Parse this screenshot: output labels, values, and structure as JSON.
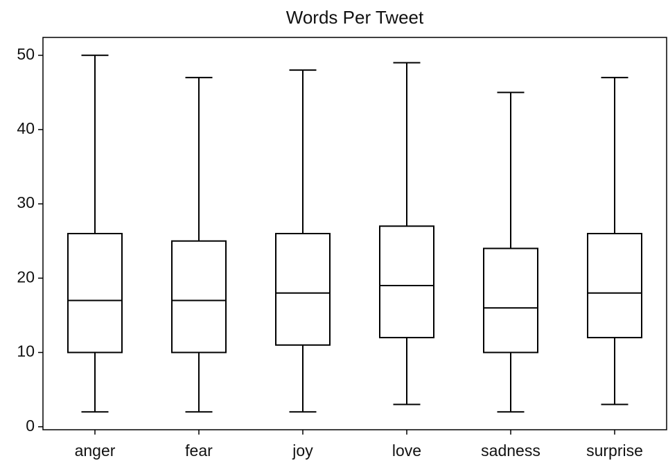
{
  "chart_data": {
    "type": "box",
    "title": "Words Per Tweet",
    "categories": [
      "anger",
      "fear",
      "joy",
      "love",
      "sadness",
      "surprise"
    ],
    "boxes": [
      {
        "whislo": 2,
        "q1": 10,
        "med": 17,
        "q3": 26,
        "whishi": 50
      },
      {
        "whislo": 2,
        "q1": 10,
        "med": 17,
        "q3": 25,
        "whishi": 47
      },
      {
        "whislo": 2,
        "q1": 11,
        "med": 18,
        "q3": 26,
        "whishi": 48
      },
      {
        "whislo": 3,
        "q1": 12,
        "med": 19,
        "q3": 27,
        "whishi": 49
      },
      {
        "whislo": 2,
        "q1": 10,
        "med": 16,
        "q3": 24,
        "whishi": 45
      },
      {
        "whislo": 3,
        "q1": 12,
        "med": 18,
        "q3": 26,
        "whishi": 47
      }
    ],
    "color": "#000000",
    "ylim": [
      -0.4,
      52.4
    ],
    "yticks": [
      0,
      10,
      20,
      30,
      40,
      50
    ],
    "grid": false
  }
}
